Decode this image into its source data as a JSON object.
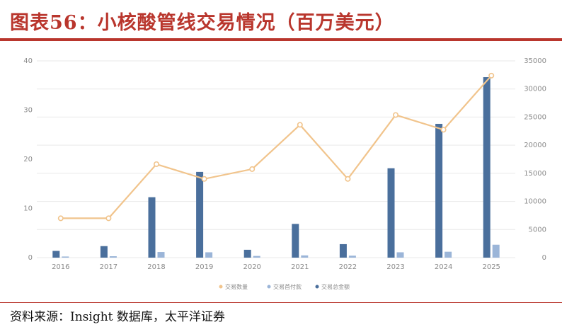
{
  "title": "图表56：小核酸管线交易情况（百万美元）",
  "source": "资料来源：Insight 数据库，太平洋证券",
  "colors": {
    "title_red": "#b9362d",
    "deal_total": "#4a6f9c",
    "upfront": "#9bb5d8",
    "deal_count": "#f1c48c",
    "grid": "#e9e9e9",
    "axis_text": "#8a8a8a"
  },
  "chart_data": {
    "type": "bar",
    "categories": [
      "2016",
      "2017",
      "2018",
      "2019",
      "2020",
      "2021",
      "2022",
      "2023",
      "2024",
      "2025"
    ],
    "series": [
      {
        "name": "交易总金额",
        "kind": "bar",
        "axis": "right",
        "values": [
          1200,
          2050,
          10750,
          15250,
          1400,
          6000,
          2400,
          15900,
          23800,
          32100
        ]
      },
      {
        "name": "交易首付款",
        "kind": "bar",
        "axis": "right",
        "values": [
          200,
          250,
          1000,
          950,
          300,
          400,
          350,
          950,
          1050,
          2300
        ]
      },
      {
        "name": "交易数量",
        "kind": "line",
        "axis": "left",
        "values": [
          8,
          8,
          19,
          16,
          18,
          27,
          16,
          29,
          26,
          37
        ]
      }
    ],
    "y_left": {
      "ticks": [
        "0",
        "10",
        "20",
        "30",
        "40"
      ],
      "range": [
        0,
        40
      ]
    },
    "y_right": {
      "ticks": [
        "0",
        "5000",
        "10000",
        "15000",
        "20000",
        "25000",
        "30000",
        "35000"
      ],
      "range": [
        0,
        35000
      ]
    },
    "grid": true,
    "legend_position": "bottom-center",
    "legend": [
      "交易数量",
      "交易首付款",
      "交易总金额"
    ]
  }
}
